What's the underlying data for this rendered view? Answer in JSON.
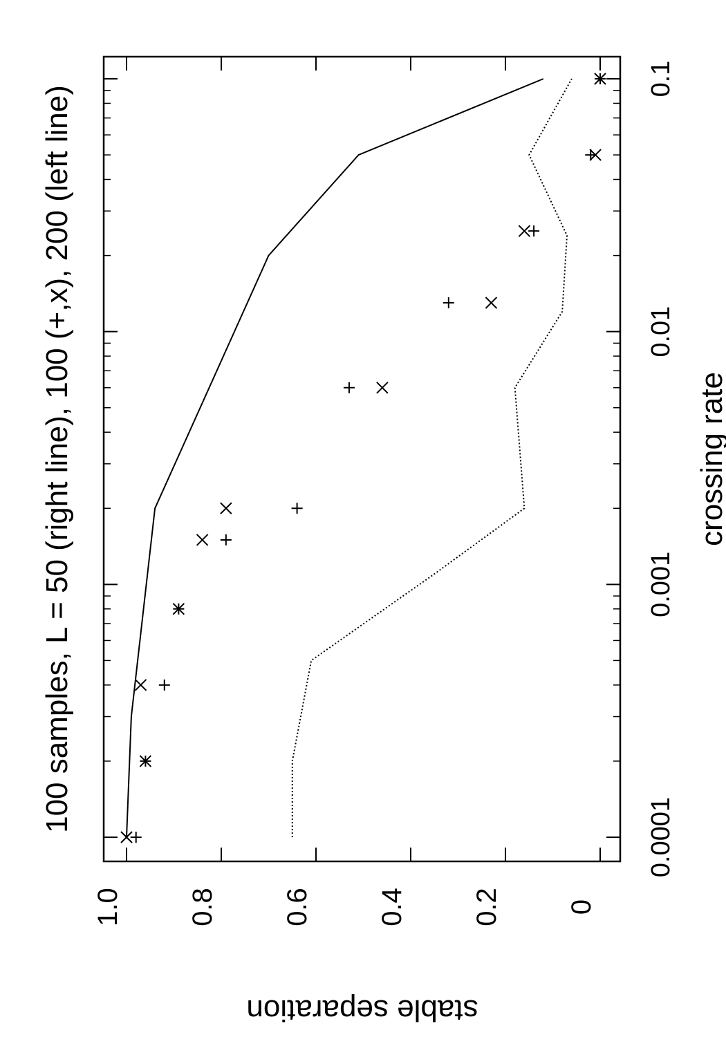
{
  "chart_data": {
    "type": "scatter",
    "title": "100 samples, L = 50 (right line), 100 (+,x), 200 (left line)",
    "xlabel": "crossing rate",
    "ylabel": "stable separation",
    "xscale": "log",
    "xlim": [
      0.0001,
      0.1
    ],
    "ylim": [
      0,
      1.05
    ],
    "x_ticks": [
      {
        "value": 0.0001,
        "label": "0.0001"
      },
      {
        "value": 0.001,
        "label": "0.001"
      },
      {
        "value": 0.01,
        "label": "0.01"
      },
      {
        "value": 0.1,
        "label": "0.1"
      }
    ],
    "y_ticks": [
      {
        "value": 0,
        "label": "0"
      },
      {
        "value": 0.2,
        "label": "0.2"
      },
      {
        "value": 0.4,
        "label": "0.4"
      },
      {
        "value": 0.6,
        "label": "0.6"
      },
      {
        "value": 0.8,
        "label": "0.8"
      },
      {
        "value": 1.0,
        "label": "1.0"
      }
    ],
    "orientation": "rotated 90 degrees counter-clockwise",
    "grid": false,
    "series": [
      {
        "style": "solid-line",
        "x": [
          0.0001,
          0.0003,
          0.002,
          0.02,
          0.05,
          0.1
        ],
        "y": [
          1.0,
          0.99,
          0.94,
          0.7,
          0.51,
          0.12
        ]
      },
      {
        "style": "dotted-line",
        "x": [
          0.0001,
          0.0002,
          0.0005,
          0.0011,
          0.002,
          0.006,
          0.012,
          0.024,
          0.05,
          0.1
        ],
        "y": [
          0.65,
          0.65,
          0.61,
          0.35,
          0.16,
          0.18,
          0.08,
          0.07,
          0.15,
          0.06
        ]
      },
      {
        "style": "plus-marker",
        "x": [
          0.0001,
          0.0002,
          0.0004,
          0.0008,
          0.0015,
          0.002,
          0.006,
          0.013,
          0.025,
          0.05,
          0.1
        ],
        "y": [
          0.98,
          0.96,
          0.92,
          0.89,
          0.79,
          0.64,
          0.53,
          0.32,
          0.14,
          0.02,
          0.0
        ]
      },
      {
        "style": "x-marker",
        "x": [
          0.0001,
          0.0002,
          0.0004,
          0.0008,
          0.0015,
          0.002,
          0.006,
          0.013,
          0.025,
          0.05,
          0.1
        ],
        "y": [
          1.0,
          0.96,
          0.97,
          0.89,
          0.84,
          0.79,
          0.46,
          0.23,
          0.16,
          0.01,
          0.0
        ]
      }
    ]
  }
}
